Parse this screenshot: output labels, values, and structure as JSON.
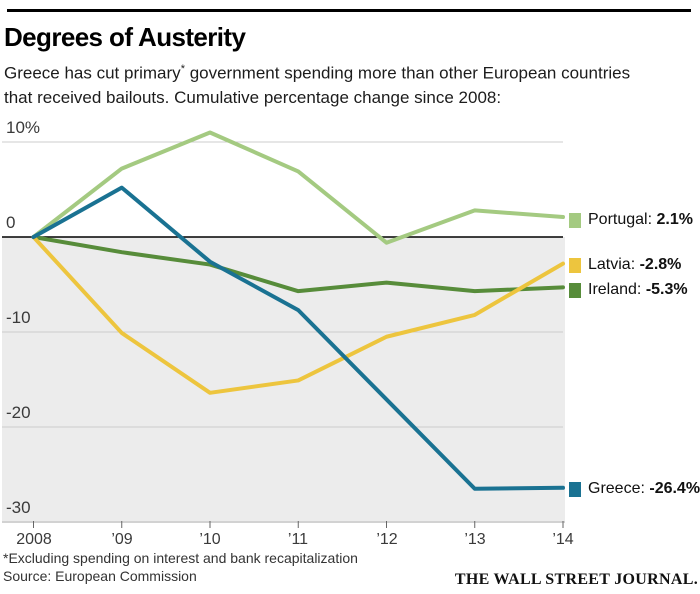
{
  "header": {
    "title": "Degrees of Austerity",
    "subtitle_part1": "Greece has cut primary",
    "subtitle_asterisk": "*",
    "subtitle_part2": " government spending more than other European countries",
    "subtitle_line2": "that received bailouts. Cumulative percentage change since 2008:"
  },
  "chart_data": {
    "type": "line",
    "title": "Degrees of Austerity",
    "subtitle": "Cumulative percentage change in primary government spending since 2008",
    "x": [
      2008,
      2009,
      2010,
      2011,
      2012,
      2013,
      2014
    ],
    "xticks": [
      "2008",
      "’09",
      "’10",
      "’11",
      "’12",
      "’13",
      "’14"
    ],
    "yticks": [
      {
        "label": "10%",
        "value": 10
      },
      {
        "label": "0",
        "value": 0
      },
      {
        "label": "-10",
        "value": -10
      },
      {
        "label": "-20",
        "value": -20
      },
      {
        "label": "-30",
        "value": -30
      }
    ],
    "ylim": [
      -30,
      12
    ],
    "grid": true,
    "shaded_below_zero": true,
    "legend_position": "right",
    "series": [
      {
        "name": "Portugal",
        "color": "#a4ca81",
        "values": [
          0,
          7.2,
          11.0,
          6.9,
          -0.6,
          2.8,
          2.1
        ],
        "legend_name": "Portugal: ",
        "legend_value": "2.1%"
      },
      {
        "name": "Ireland",
        "color": "#578c3a",
        "values": [
          0,
          -1.6,
          -2.9,
          -5.7,
          -4.8,
          -5.7,
          -5.3
        ],
        "legend_name": "Ireland: ",
        "legend_value": "-5.3%"
      },
      {
        "name": "Latvia",
        "color": "#edc53e",
        "values": [
          0,
          -10.1,
          -16.4,
          -15.1,
          -10.5,
          -8.2,
          -2.8
        ],
        "legend_name": "Latvia: ",
        "legend_value": "-2.8%"
      },
      {
        "name": "Greece",
        "color": "#1a7292",
        "values": [
          0,
          5.2,
          -2.6,
          -7.7,
          -17.1,
          -26.5,
          -26.4
        ],
        "legend_name": "Greece: ",
        "legend_value": "-26.4%"
      }
    ]
  },
  "colors": {
    "background": "#ffffff",
    "shade_below_zero": "#ececec",
    "gridline": "#cccccc",
    "axis_bottom_line": "#a6a6a6",
    "zero_line": "#000000",
    "tick": "#666666",
    "top_rule": "#000000"
  },
  "footer": {
    "footnote": "*Excluding spending on interest and bank recapitalization",
    "source": "Source: European Commission",
    "credit": "THE WALL STREET JOURNAL."
  }
}
